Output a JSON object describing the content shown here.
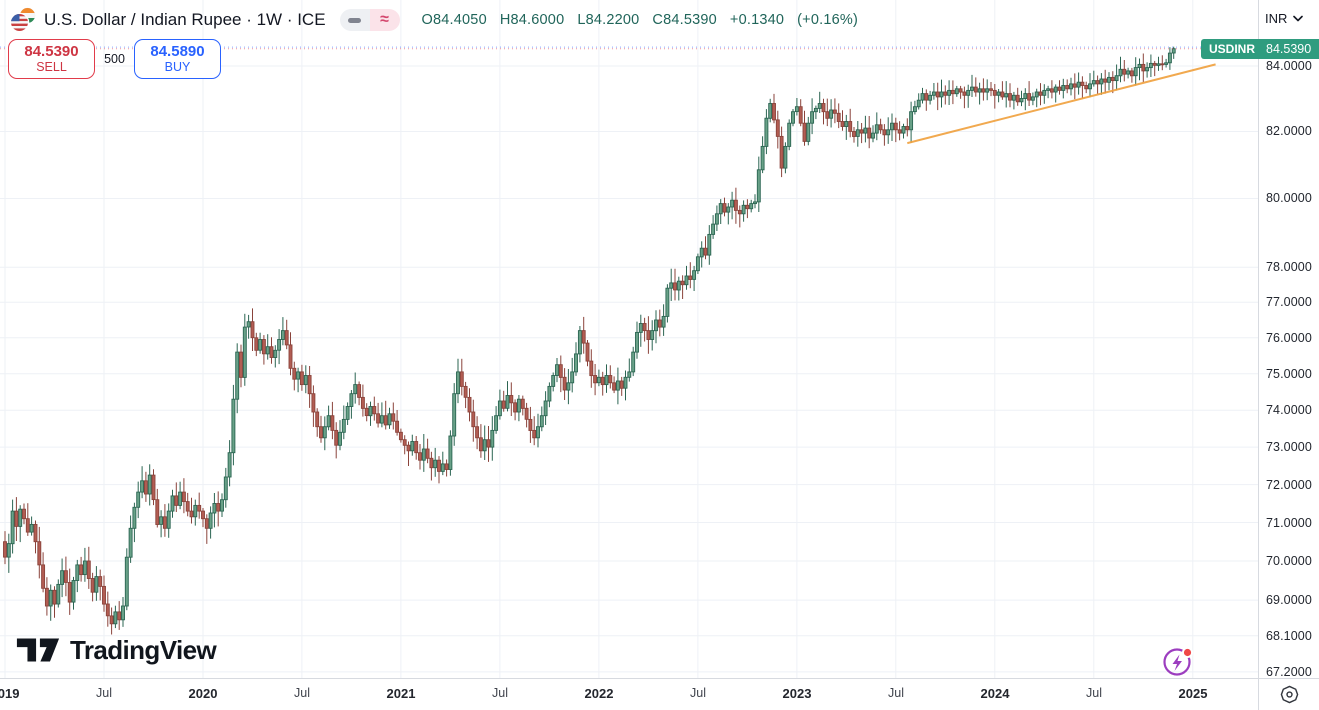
{
  "header": {
    "symbol_title": "U.S. Dollar / Indian Rupee · 1W · ICE",
    "status_icons": {
      "market_closed_glyph": "—",
      "delayed_glyph": "≈"
    },
    "ohlc": {
      "open": "O84.4050",
      "high": "H84.6000",
      "low": "L84.2200",
      "close": "C84.5390",
      "change": "+0.1340",
      "change_pct": "(+0.16%)"
    }
  },
  "trade_panel": {
    "sell_price": "84.5390",
    "sell_label": "SELL",
    "spread": "500",
    "buy_price": "84.5890",
    "buy_label": "BUY"
  },
  "price_axis": {
    "currency": "INR",
    "current_price": "84.5390",
    "symbol_tag": "USDINR",
    "ticks": [
      {
        "value": 84.0,
        "label": "84.0000"
      },
      {
        "value": 82.0,
        "label": "82.0000"
      },
      {
        "value": 80.0,
        "label": "80.0000"
      },
      {
        "value": 78.0,
        "label": "78.0000"
      },
      {
        "value": 77.0,
        "label": "77.0000"
      },
      {
        "value": 76.0,
        "label": "76.0000"
      },
      {
        "value": 75.0,
        "label": "75.0000"
      },
      {
        "value": 74.0,
        "label": "74.0000"
      },
      {
        "value": 73.0,
        "label": "73.0000"
      },
      {
        "value": 72.0,
        "label": "72.0000"
      },
      {
        "value": 71.0,
        "label": "71.0000"
      },
      {
        "value": 70.0,
        "label": "70.0000"
      },
      {
        "value": 69.0,
        "label": "69.0000"
      },
      {
        "value": 68.1,
        "label": "68.1000"
      },
      {
        "value": 67.2,
        "label": "67.2000"
      }
    ]
  },
  "time_axis": {
    "ticks": [
      {
        "label": "2019",
        "week": 0,
        "major": true
      },
      {
        "label": "Jul",
        "week": 26,
        "major": false
      },
      {
        "label": "2020",
        "week": 52,
        "major": true
      },
      {
        "label": "Jul",
        "week": 78,
        "major": false
      },
      {
        "label": "2021",
        "week": 104,
        "major": true
      },
      {
        "label": "Jul",
        "week": 130,
        "major": false
      },
      {
        "label": "2022",
        "week": 156,
        "major": true
      },
      {
        "label": "Jul",
        "week": 182,
        "major": false
      },
      {
        "label": "2023",
        "week": 208,
        "major": true
      },
      {
        "label": "Jul",
        "week": 234,
        "major": false
      },
      {
        "label": "2024",
        "week": 260,
        "major": true
      },
      {
        "label": "Jul",
        "week": 286,
        "major": false
      },
      {
        "label": "2025",
        "week": 312,
        "major": true
      }
    ]
  },
  "watermark": {
    "logo_text": "TradingView"
  },
  "chart_data": {
    "type": "candlestick",
    "title": "U.S. Dollar / Indian Rupee · 1W · ICE",
    "symbol": "USDINR",
    "interval": "1W",
    "scale": "log",
    "ylim": [
      67.0,
      85.2
    ],
    "grid": true,
    "y_ticks": [
      84.0,
      82.0,
      80.0,
      78.0,
      77.0,
      76.0,
      75.0,
      74.0,
      73.0,
      72.0,
      71.0,
      70.0,
      69.0,
      68.1,
      67.2
    ],
    "x_tick_labels": [
      "2019",
      "Jul",
      "2020",
      "Jul",
      "2021",
      "Jul",
      "2022",
      "Jul",
      "2023",
      "Jul",
      "2024",
      "Jul",
      "2025"
    ],
    "weekly_closes": [
      70.1,
      70.45,
      71.3,
      70.9,
      71.35,
      71.1,
      70.75,
      70.95,
      70.5,
      69.9,
      69.3,
      68.85,
      69.25,
      68.9,
      69.4,
      69.75,
      69.45,
      68.95,
      69.5,
      69.9,
      69.65,
      70.0,
      69.55,
      69.2,
      69.6,
      69.35,
      68.9,
      68.6,
      68.4,
      68.7,
      68.5,
      68.85,
      70.1,
      70.85,
      71.4,
      71.8,
      72.1,
      71.75,
      72.25,
      71.6,
      70.95,
      71.15,
      70.85,
      71.3,
      71.7,
      71.45,
      71.8,
      71.55,
      71.3,
      71.15,
      71.45,
      71.3,
      71.1,
      70.85,
      71.25,
      71.5,
      71.3,
      71.6,
      72.2,
      72.85,
      74.3,
      75.6,
      74.9,
      76.3,
      76.45,
      76.0,
      75.65,
      75.95,
      75.55,
      75.75,
      75.45,
      75.65,
      75.95,
      76.2,
      75.8,
      75.15,
      74.85,
      75.05,
      74.7,
      74.95,
      74.45,
      73.95,
      73.55,
      73.25,
      73.55,
      73.85,
      73.45,
      73.05,
      73.4,
      73.75,
      74.1,
      74.45,
      74.7,
      74.35,
      74.05,
      73.85,
      74.1,
      73.9,
      73.65,
      73.85,
      73.6,
      73.9,
      73.7,
      73.4,
      73.2,
      73.05,
      72.9,
      73.15,
      72.85,
      72.65,
      72.95,
      72.7,
      72.45,
      72.65,
      72.35,
      72.55,
      72.4,
      73.3,
      74.45,
      75.05,
      74.65,
      74.35,
      73.95,
      73.55,
      73.25,
      72.9,
      73.2,
      73.0,
      73.45,
      73.85,
      74.25,
      74.05,
      74.4,
      74.2,
      73.95,
      74.3,
      74.05,
      73.75,
      73.45,
      73.25,
      73.55,
      73.85,
      74.25,
      74.65,
      74.95,
      75.25,
      74.9,
      74.55,
      74.75,
      75.05,
      75.55,
      76.2,
      75.85,
      75.35,
      74.95,
      74.75,
      74.9,
      74.7,
      74.95,
      74.75,
      74.55,
      74.8,
      74.6,
      74.9,
      75.05,
      75.6,
      76.15,
      76.4,
      76.2,
      75.95,
      76.2,
      76.5,
      76.3,
      76.6,
      77.4,
      77.55,
      77.35,
      77.6,
      77.5,
      77.75,
      77.65,
      77.9,
      78.3,
      78.55,
      78.35,
      78.95,
      79.25,
      79.55,
      79.85,
      79.6,
      79.75,
      79.95,
      79.65,
      79.55,
      79.8,
      79.7,
      79.85,
      79.9,
      80.85,
      81.55,
      82.4,
      82.85,
      82.35,
      81.85,
      80.9,
      81.55,
      82.25,
      82.6,
      82.75,
      82.25,
      81.7,
      82.25,
      82.6,
      82.7,
      82.85,
      82.6,
      82.4,
      82.65,
      82.55,
      82.3,
      82.15,
      82.3,
      82.0,
      81.85,
      82.05,
      81.95,
      82.1,
      81.8,
      81.95,
      82.2,
      82.05,
      81.9,
      82.05,
      82.25,
      82.05,
      81.95,
      82.15,
      82.05,
      82.6,
      82.75,
      82.95,
      83.15,
      82.95,
      83.1,
      83.2,
      83.05,
      83.2,
      83.1,
      83.25,
      83.15,
      83.3,
      83.2,
      83.1,
      83.25,
      83.35,
      83.2,
      83.3,
      83.2,
      83.3,
      83.25,
      83.1,
      83.2,
      83.05,
      83.15,
      82.95,
      83.1,
      82.9,
      83.0,
      83.15,
      82.95,
      83.05,
      83.2,
      83.1,
      83.25,
      83.3,
      83.2,
      83.35,
      83.25,
      83.4,
      83.3,
      83.45,
      83.35,
      83.5,
      83.4,
      83.3,
      83.45,
      83.55,
      83.45,
      83.6,
      83.5,
      83.65,
      83.55,
      83.7,
      83.9,
      83.75,
      83.85,
      83.7,
      83.95,
      84.05,
      83.85,
      83.95,
      84.08,
      84.02,
      84.07,
      84.05,
      84.1,
      84.4,
      84.539
    ],
    "last_candle": {
      "open": 84.405,
      "high": 84.6,
      "low": 84.22,
      "close": 84.539
    },
    "sell_line_price": 84.539,
    "buy_line_price": 84.589,
    "trendline": {
      "from_week": 237,
      "from_price": 81.65,
      "to_week": 318,
      "to_price": 84.05,
      "color": "#f0a03c"
    },
    "colors": {
      "up_fill": "#69a188",
      "up_border": "#2b6552",
      "down_fill": "#b25d53",
      "down_border": "#8a433b",
      "grid": "#eef1f6",
      "current_label_bg": "#2f9c7f",
      "sell": "#e13b4a",
      "buy": "#2962ff"
    }
  }
}
